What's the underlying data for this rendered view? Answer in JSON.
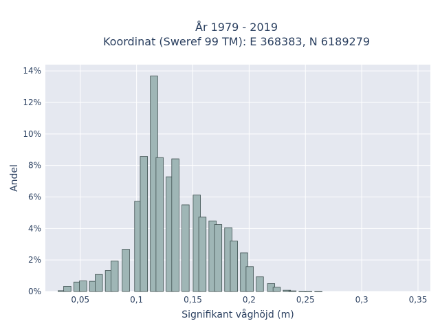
{
  "chart_data": {
    "type": "bar",
    "title_lines": [
      "År 1979 - 2019",
      "Koordinat (Sweref 99 TM): E 368383, N 6189279"
    ],
    "xlabel": "Signifikant våghöjd (m)",
    "ylabel": "Andel",
    "xlim": [
      0.019,
      0.361
    ],
    "ylim": [
      0,
      0.144
    ],
    "bar_width": 0.0065,
    "x_ticks": [
      {
        "value": 0.05,
        "label": "0,05"
      },
      {
        "value": 0.1,
        "label": "0,1"
      },
      {
        "value": 0.15,
        "label": "0,15"
      },
      {
        "value": 0.2,
        "label": "0,2"
      },
      {
        "value": 0.25,
        "label": "0,25"
      },
      {
        "value": 0.3,
        "label": "0,3"
      },
      {
        "value": 0.35,
        "label": "0,35"
      }
    ],
    "y_ticks": [
      {
        "value": 0,
        "label": "0%"
      },
      {
        "value": 0.02,
        "label": "2%"
      },
      {
        "value": 0.04,
        "label": "4%"
      },
      {
        "value": 0.06,
        "label": "6%"
      },
      {
        "value": 0.08,
        "label": "8%"
      },
      {
        "value": 0.1,
        "label": "10%"
      },
      {
        "value": 0.12,
        "label": "12%"
      },
      {
        "value": 0.14,
        "label": "14%"
      }
    ],
    "grid": true,
    "bar_color": "#9fb6b6",
    "bar_edge_color": "#3d4f4f",
    "plot_bg": "#e5e8f0",
    "bins": [
      {
        "x": 0.0335,
        "y": 0.0005
      },
      {
        "x": 0.0385,
        "y": 0.0033
      },
      {
        "x": 0.0475,
        "y": 0.006
      },
      {
        "x": 0.0525,
        "y": 0.0067
      },
      {
        "x": 0.0615,
        "y": 0.0065
      },
      {
        "x": 0.0665,
        "y": 0.0108
      },
      {
        "x": 0.0755,
        "y": 0.0133
      },
      {
        "x": 0.0805,
        "y": 0.0193
      },
      {
        "x": 0.0905,
        "y": 0.0268
      },
      {
        "x": 0.1015,
        "y": 0.0573
      },
      {
        "x": 0.1065,
        "y": 0.0857
      },
      {
        "x": 0.1155,
        "y": 0.1368
      },
      {
        "x": 0.1205,
        "y": 0.085
      },
      {
        "x": 0.1295,
        "y": 0.0728
      },
      {
        "x": 0.1345,
        "y": 0.0842
      },
      {
        "x": 0.1435,
        "y": 0.055
      },
      {
        "x": 0.1535,
        "y": 0.0612
      },
      {
        "x": 0.1585,
        "y": 0.0472
      },
      {
        "x": 0.1675,
        "y": 0.0448
      },
      {
        "x": 0.1725,
        "y": 0.0425
      },
      {
        "x": 0.1815,
        "y": 0.0405
      },
      {
        "x": 0.1865,
        "y": 0.032
      },
      {
        "x": 0.1955,
        "y": 0.0245
      },
      {
        "x": 0.2005,
        "y": 0.0158
      },
      {
        "x": 0.2095,
        "y": 0.0093
      },
      {
        "x": 0.2195,
        "y": 0.005
      },
      {
        "x": 0.2245,
        "y": 0.0027
      },
      {
        "x": 0.2335,
        "y": 0.0008
      },
      {
        "x": 0.2385,
        "y": 0.0004
      },
      {
        "x": 0.2475,
        "y": 0.0002
      },
      {
        "x": 0.2525,
        "y": 0.0002
      },
      {
        "x": 0.2615,
        "y": 0.0001
      }
    ]
  }
}
